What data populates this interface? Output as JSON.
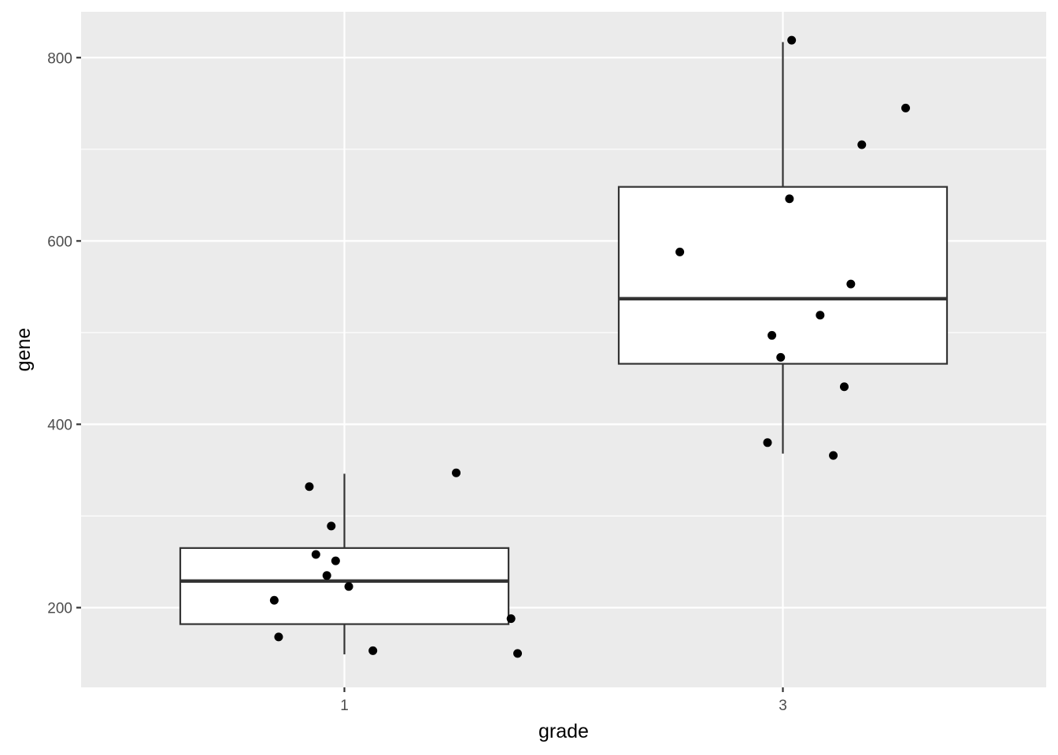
{
  "chart_data": {
    "type": "boxplot",
    "xlabel": "grade",
    "ylabel": "gene",
    "x_categories": [
      "1",
      "3"
    ],
    "y_ticks": [
      200,
      400,
      600,
      800
    ],
    "ylim": [
      113,
      850
    ],
    "grid": true,
    "colors": {
      "panel_bg": "#ebebeb",
      "grid_major": "#ffffff",
      "box_fill": "#ffffff",
      "box_line": "#333333",
      "point": "#000000"
    },
    "boxes": [
      {
        "category": "1",
        "whisker_low": 149,
        "q1": 182,
        "median": 229,
        "q3": 265,
        "whisker_high": 346
      },
      {
        "category": "3",
        "whisker_low": 368,
        "q1": 466,
        "median": 537,
        "q3": 659,
        "whisker_high": 817
      }
    ],
    "points": [
      {
        "category": "1",
        "x": 0.68,
        "y": 208
      },
      {
        "category": "1",
        "x": 0.7,
        "y": 168
      },
      {
        "category": "1",
        "x": 0.84,
        "y": 332
      },
      {
        "category": "1",
        "x": 0.87,
        "y": 258
      },
      {
        "category": "1",
        "x": 0.92,
        "y": 235
      },
      {
        "category": "1",
        "x": 0.94,
        "y": 289
      },
      {
        "category": "1",
        "x": 0.96,
        "y": 251
      },
      {
        "category": "1",
        "x": 1.02,
        "y": 223
      },
      {
        "category": "1",
        "x": 1.13,
        "y": 153
      },
      {
        "category": "1",
        "x": 1.51,
        "y": 347
      },
      {
        "category": "1",
        "x": 1.76,
        "y": 188
      },
      {
        "category": "1",
        "x": 1.79,
        "y": 150
      },
      {
        "category": "3",
        "x": 2.53,
        "y": 588
      },
      {
        "category": "3",
        "x": 2.93,
        "y": 380
      },
      {
        "category": "3",
        "x": 2.95,
        "y": 497
      },
      {
        "category": "3",
        "x": 2.99,
        "y": 473
      },
      {
        "category": "3",
        "x": 3.03,
        "y": 646
      },
      {
        "category": "3",
        "x": 3.04,
        "y": 819
      },
      {
        "category": "3",
        "x": 3.17,
        "y": 519
      },
      {
        "category": "3",
        "x": 3.23,
        "y": 366
      },
      {
        "category": "3",
        "x": 3.28,
        "y": 441
      },
      {
        "category": "3",
        "x": 3.31,
        "y": 553
      },
      {
        "category": "3",
        "x": 3.36,
        "y": 705
      },
      {
        "category": "3",
        "x": 3.56,
        "y": 745
      }
    ]
  }
}
